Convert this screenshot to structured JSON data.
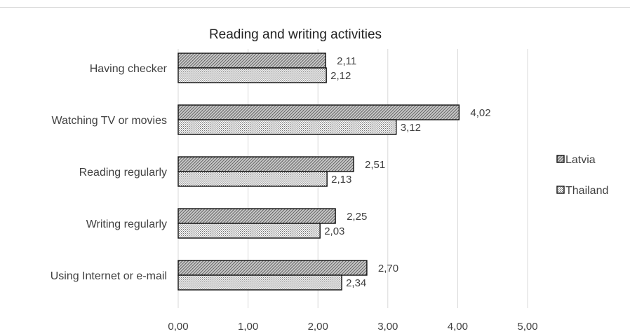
{
  "chart_data": {
    "type": "bar",
    "orientation": "horizontal",
    "title": "Reading and writing activities",
    "categories": [
      "Having checker",
      "Watching TV or movies",
      "Reading regularly",
      "Writing regularly",
      "Using Internet or e-mail"
    ],
    "series": [
      {
        "name": "Latvia",
        "values": [
          2.11,
          4.02,
          2.51,
          2.25,
          2.7
        ],
        "labels": [
          "2,11",
          "4,02",
          "2,51",
          "2,25",
          "2,70"
        ],
        "pattern": "diagonal-hatch"
      },
      {
        "name": "Thailand",
        "values": [
          2.12,
          3.12,
          2.13,
          2.03,
          2.34
        ],
        "labels": [
          "2,12",
          "3,12",
          "2,13",
          "2,03",
          "2,34"
        ],
        "pattern": "dotted"
      }
    ],
    "xlim": [
      0,
      5
    ],
    "xticks": [
      "0,00",
      "1,00",
      "2,00",
      "3,00",
      "4,00",
      "5,00"
    ],
    "grid": true,
    "legend_position": "right"
  }
}
